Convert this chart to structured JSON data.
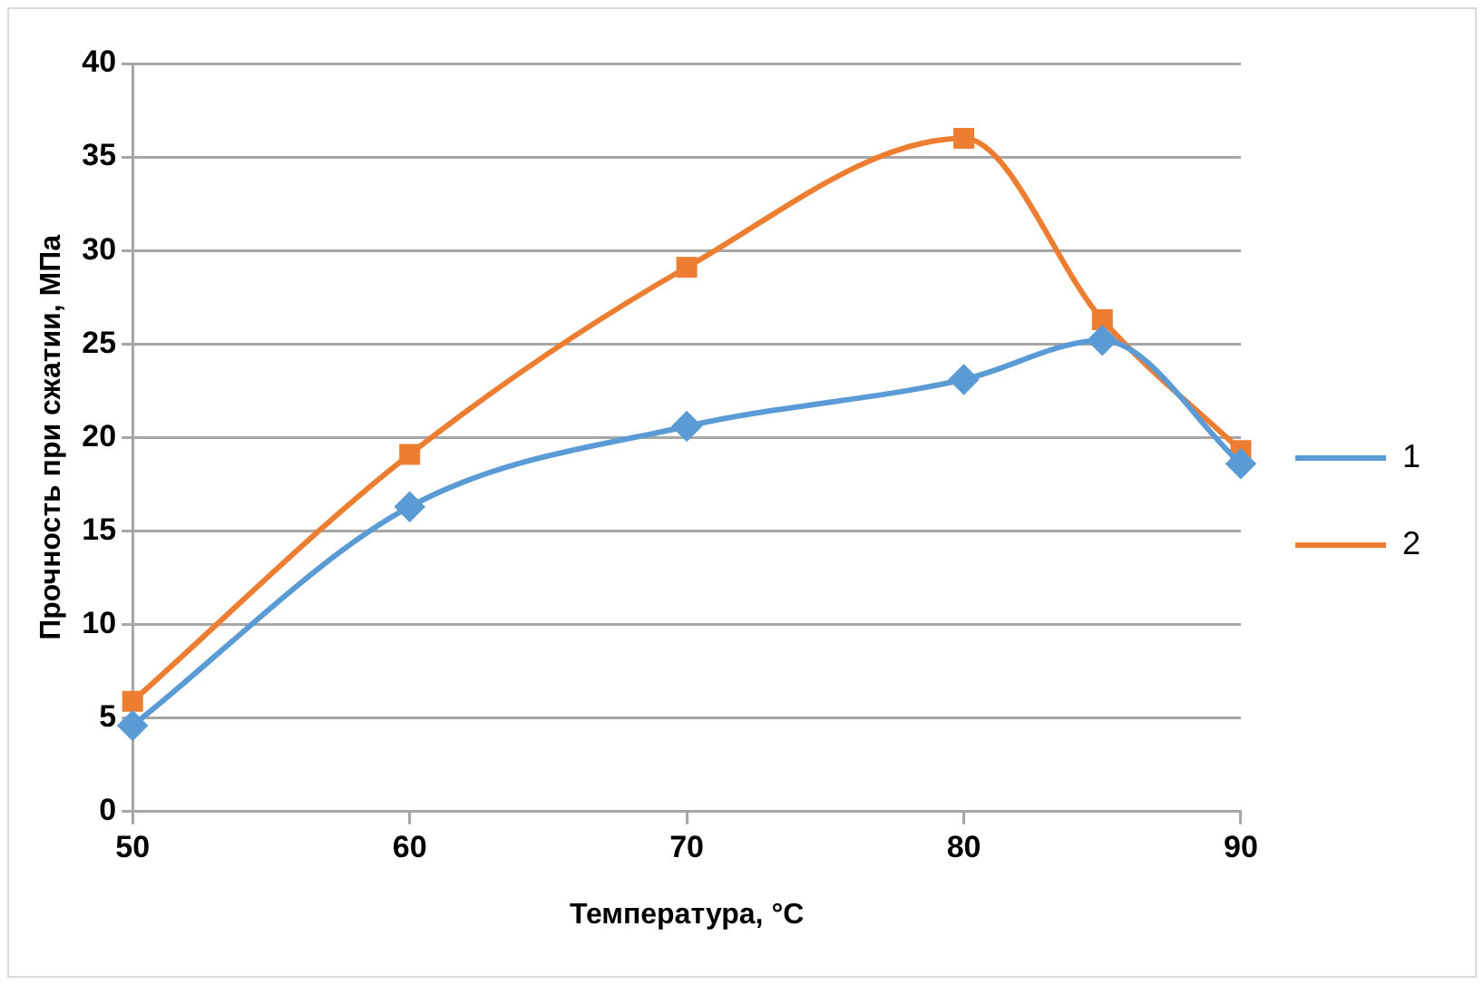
{
  "chart_data": {
    "type": "line",
    "xlabel": "Температура, °С",
    "ylabel": "Прочность при сжатии, МПа",
    "x": [
      50,
      60,
      70,
      80,
      85,
      90
    ],
    "series": [
      {
        "name": "1",
        "color": "#5b9bd5",
        "marker": "diamond",
        "values": [
          4.6,
          16.3,
          20.6,
          23.1,
          25.2,
          18.6
        ]
      },
      {
        "name": "2",
        "color": "#ed7d31",
        "marker": "square",
        "values": [
          5.9,
          19.1,
          29.1,
          36.0,
          26.3,
          19.3
        ]
      }
    ],
    "xlim": [
      50,
      90
    ],
    "xticks": [
      50,
      60,
      70,
      80,
      90
    ],
    "ylim": [
      0,
      40
    ],
    "yticks": [
      0,
      5,
      10,
      15,
      20,
      25,
      30,
      35,
      40
    ],
    "grid": "y",
    "legend": "right"
  }
}
